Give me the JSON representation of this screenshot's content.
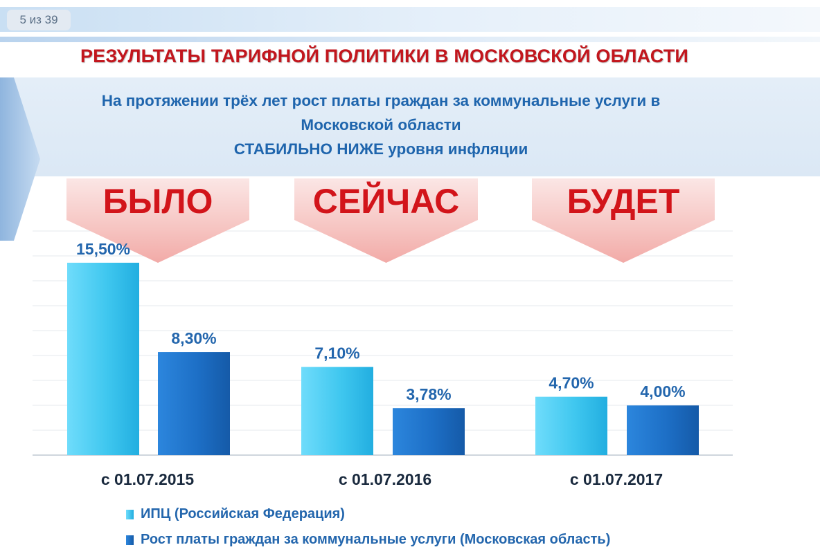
{
  "page_counter": "5 из 39",
  "title": "РЕЗУЛЬТАТЫ  ТАРИФНОЙ  ПОЛИТИКИ В  МОСКОВСКОЙ ОБЛАСТИ",
  "subtitle": {
    "line1": "На протяжении трёх лет рост платы граждан за коммунальные услуги в",
    "line2": "Московской области",
    "line3": "СТАБИЛЬНО НИЖЕ уровня инфляции"
  },
  "colors": {
    "title": "#c2161d",
    "subtitle": "#1f65ad",
    "series_light": "#3fc7ef",
    "series_dark": "#1d6fc6",
    "period_arrow": "#f2aaa7",
    "period_text": "#d2141a"
  },
  "periods": [
    "БЫЛО",
    "СЕЙЧАС",
    "БУДЕТ"
  ],
  "chart_data": {
    "type": "bar",
    "categories": [
      "с 01.07.2015",
      "с 01.07.2016",
      "с 01.07.2017"
    ],
    "series": [
      {
        "name": "ИПЦ (Российская Федерация)",
        "values": [
          15.5,
          7.1,
          4.7
        ],
        "labels": [
          "15,50%",
          "7,10%",
          "4,70%"
        ]
      },
      {
        "name": "Рост платы граждан за коммунальные услуги (Московская область)",
        "values": [
          8.3,
          3.78,
          4.0
        ],
        "labels": [
          "8,30%",
          "3,78%",
          "4,00%"
        ]
      }
    ],
    "ylim": [
      0,
      18
    ],
    "grid": true,
    "legend": "bottom-left"
  }
}
